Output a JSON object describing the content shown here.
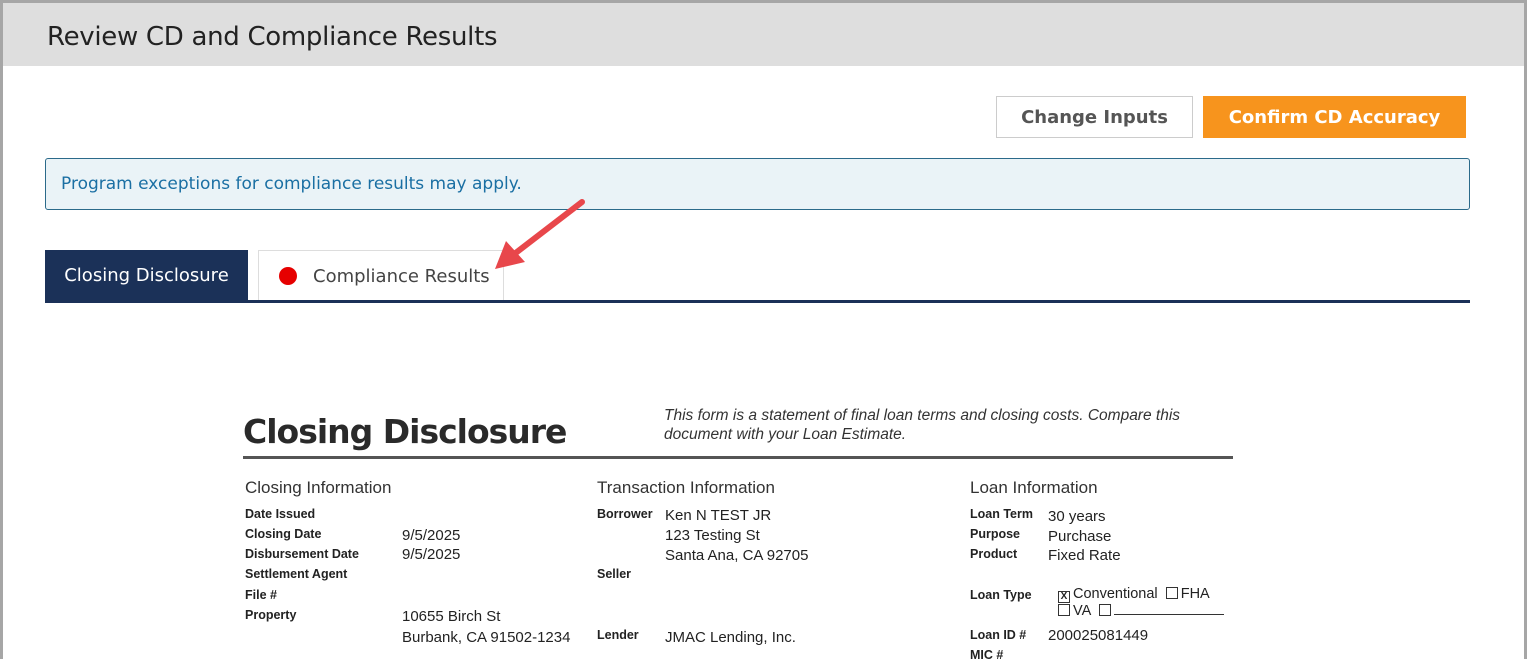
{
  "header": {
    "title": "Review CD and Compliance Results"
  },
  "actions": {
    "change_inputs": "Change Inputs",
    "confirm": "Confirm CD Accuracy"
  },
  "banner": {
    "text": "Program exceptions for compliance results may apply."
  },
  "tabs": [
    {
      "label": "Closing Disclosure",
      "active": true
    },
    {
      "label": "Compliance Results",
      "status_color": "#e60000"
    }
  ],
  "colors": {
    "accent": "#f7941d",
    "nav": "#1b3158",
    "annotation_arrow": "#e8474b"
  },
  "document": {
    "title": "Closing Disclosure",
    "subtitle": "This form is a statement of final loan terms and closing costs. Compare this document with your Loan Estimate.",
    "closing_info": {
      "heading": "Closing Information",
      "date_issued": "Date Issued",
      "closing_date": "Closing Date",
      "closing_date_val": "9/5/2025",
      "disbursement_date": "Disbursement Date",
      "disbursement_date_val": "9/5/2025",
      "settlement_agent": "Settlement Agent",
      "file": "File #",
      "property": "Property",
      "property_line1": "10655 Birch St",
      "property_line2": "Burbank, CA  91502-1234"
    },
    "transaction_info": {
      "heading": "Transaction Information",
      "borrower": "Borrower",
      "borrower_line1": "Ken N TEST JR",
      "borrower_line2": "123 Testing St",
      "borrower_line3": "Santa Ana, CA 92705",
      "seller": "Seller",
      "lender": "Lender",
      "lender_val": "JMAC Lending, Inc."
    },
    "loan_info": {
      "heading": "Loan Information",
      "loan_term": "Loan Term",
      "loan_term_val": "30 years",
      "purpose": "Purpose",
      "purpose_val": "Purchase",
      "product": "Product",
      "product_val": "Fixed Rate",
      "loan_type": "Loan Type",
      "conventional": "Conventional",
      "fha": "FHA",
      "va": "VA",
      "check_mark": "X",
      "loan_id": "Loan ID #",
      "loan_id_val": "200025081449",
      "mic": "MIC #"
    }
  }
}
